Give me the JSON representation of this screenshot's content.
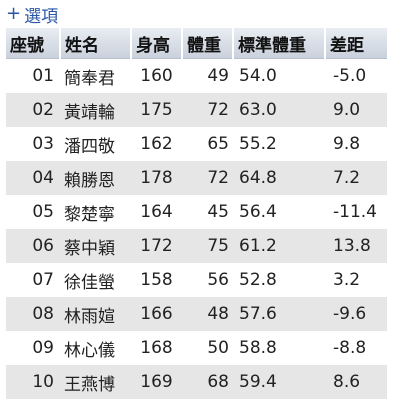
{
  "options": {
    "plus": "+",
    "label": "選項"
  },
  "table": {
    "headers": {
      "seat": "座號",
      "name": "姓名",
      "height": "身高",
      "weight": "體重",
      "std_weight": "標準體重",
      "diff": "差距"
    },
    "rows": [
      {
        "seat": "01",
        "name": "簡奉君",
        "height": "160",
        "weight": "49",
        "std_weight": "54.0",
        "diff": "-5.0"
      },
      {
        "seat": "02",
        "name": "黃靖輪",
        "height": "175",
        "weight": "72",
        "std_weight": "63.0",
        "diff": "9.0"
      },
      {
        "seat": "03",
        "name": "潘四敬",
        "height": "162",
        "weight": "65",
        "std_weight": "55.2",
        "diff": "9.8"
      },
      {
        "seat": "04",
        "name": "賴勝恩",
        "height": "178",
        "weight": "72",
        "std_weight": "64.8",
        "diff": "7.2"
      },
      {
        "seat": "05",
        "name": "黎楚寧",
        "height": "164",
        "weight": "45",
        "std_weight": "56.4",
        "diff": "-11.4"
      },
      {
        "seat": "06",
        "name": "蔡中穎",
        "height": "172",
        "weight": "75",
        "std_weight": "61.2",
        "diff": "13.8"
      },
      {
        "seat": "07",
        "name": "徐佳螢",
        "height": "158",
        "weight": "56",
        "std_weight": "52.8",
        "diff": "3.2"
      },
      {
        "seat": "08",
        "name": "林雨媗",
        "height": "166",
        "weight": "48",
        "std_weight": "57.6",
        "diff": "-9.6"
      },
      {
        "seat": "09",
        "name": "林心儀",
        "height": "168",
        "weight": "50",
        "std_weight": "58.8",
        "diff": "-8.8"
      },
      {
        "seat": "10",
        "name": "王燕博",
        "height": "169",
        "weight": "68",
        "std_weight": "59.4",
        "diff": "8.6"
      }
    ]
  }
}
